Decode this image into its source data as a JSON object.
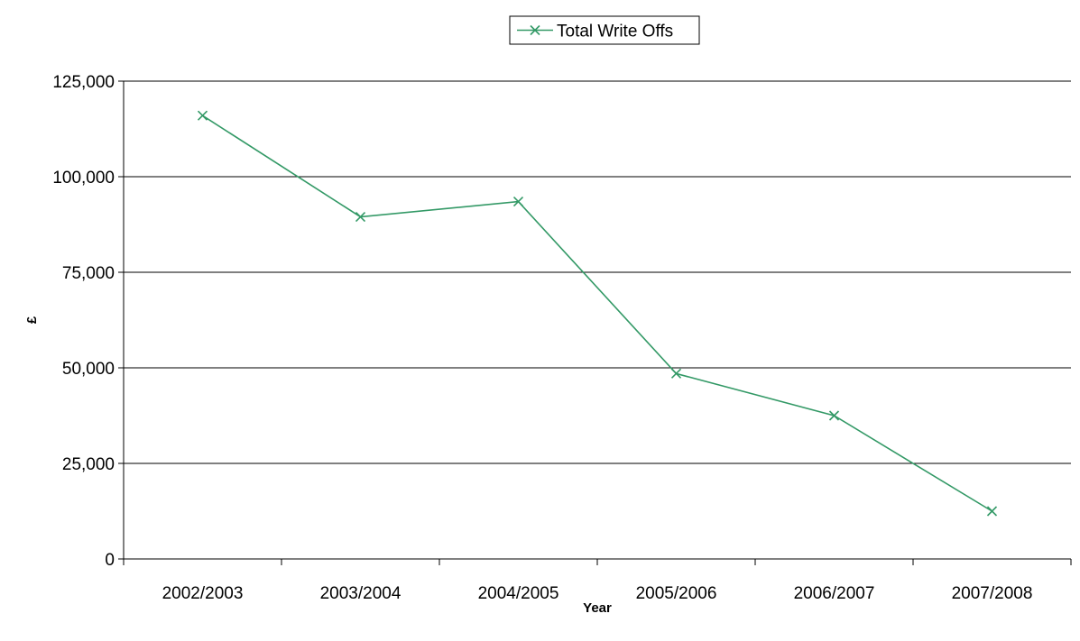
{
  "chart_data": {
    "type": "line",
    "title": "",
    "xlabel": "Year",
    "ylabel": "£",
    "categories": [
      "2002/2003",
      "2003/2004",
      "2004/2005",
      "2005/2006",
      "2006/2007",
      "2007/2008"
    ],
    "series": [
      {
        "name": "Total Write Offs",
        "values": [
          116000,
          89500,
          93500,
          48500,
          37500,
          12500
        ],
        "color": "#339966",
        "marker": "x"
      }
    ],
    "ylim": [
      0,
      125000
    ],
    "yticks": [
      0,
      25000,
      50000,
      75000,
      100000,
      125000
    ],
    "ytick_labels": [
      "0",
      "25,000",
      "50,000",
      "75,000",
      "100,000",
      "125,000"
    ],
    "grid": "horizontal",
    "legend_position": "top"
  }
}
